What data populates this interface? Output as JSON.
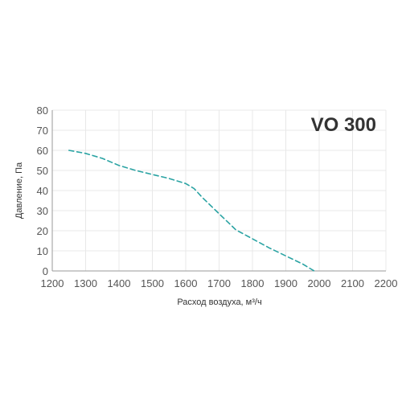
{
  "chart_data": {
    "type": "line",
    "title": "VO 300",
    "xlabel": "Расход воздуха, м³/ч",
    "ylabel": "Давление, Па",
    "xlim": [
      1200,
      2200
    ],
    "ylim": [
      0,
      80
    ],
    "xticks": [
      1200,
      1300,
      1400,
      1500,
      1600,
      1700,
      1800,
      1900,
      2000,
      2100,
      2200
    ],
    "yticks": [
      0,
      10,
      20,
      30,
      40,
      50,
      60,
      70,
      80
    ],
    "grid": true,
    "line_style": "dashed",
    "colors": {
      "series": "#2aa3a3",
      "grid": "#e8e8e8",
      "axis": "#9a9a9a",
      "text": "#333333"
    },
    "series": [
      {
        "x": [
          1250,
          1300,
          1350,
          1400,
          1450,
          1500,
          1550,
          1600,
          1625,
          1650,
          1700,
          1750,
          1800,
          1850,
          1900,
          1950,
          1985
        ],
        "y": [
          60,
          58.5,
          56,
          52.5,
          50,
          48,
          46,
          43.5,
          41,
          36.5,
          28.5,
          20.5,
          16,
          11.5,
          7.5,
          3.5,
          0
        ]
      }
    ]
  }
}
